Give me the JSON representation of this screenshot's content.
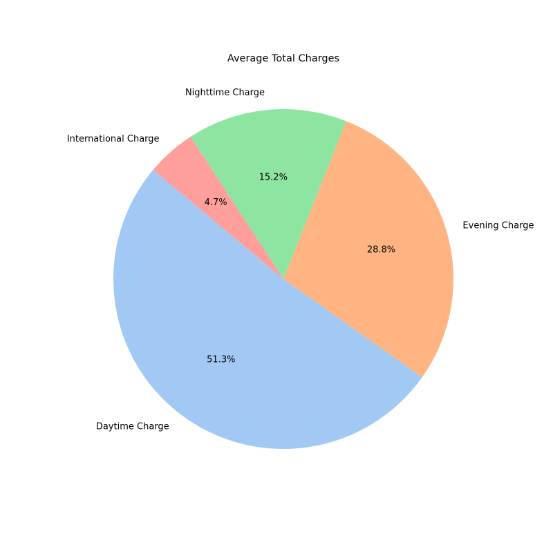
{
  "chart_data": {
    "type": "pie",
    "title": "Average Total Charges",
    "start_angle_deg": 140,
    "direction": "counterclockwise",
    "slices": [
      {
        "label": "Daytime Charge",
        "value": 51.3,
        "pct_text": "51.3%",
        "color": "#a1c9f4"
      },
      {
        "label": "Evening Charge",
        "value": 28.8,
        "pct_text": "28.8%",
        "color": "#ffb482"
      },
      {
        "label": "Nighttime Charge",
        "value": 15.2,
        "pct_text": "15.2%",
        "color": "#8de5a1"
      },
      {
        "label": "International Charge",
        "value": 4.7,
        "pct_text": "4.7%",
        "color": "#ff9f9b"
      }
    ]
  }
}
